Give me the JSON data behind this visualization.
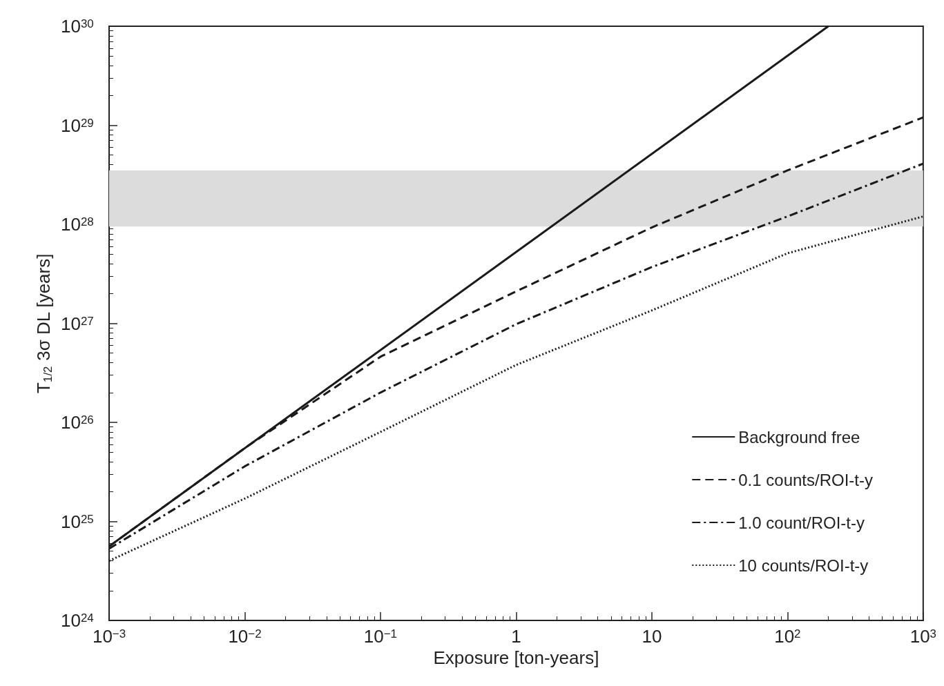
{
  "chart_data": {
    "type": "line",
    "xlabel": "Exposure [ton-years]",
    "ylabel": "T$_{1/2}$ 3σ DL [years]",
    "log": "xy",
    "xlim": [
      0.001,
      1000
    ],
    "ylim": [
      1e+24,
      1e+30
    ],
    "xticks": [
      {
        "value": 0.001,
        "label": "10$^{−3}$"
      },
      {
        "value": 0.01,
        "label": "10$^{−2}$"
      },
      {
        "value": 0.1,
        "label": "10$^{−1}$"
      },
      1,
      10,
      {
        "value": 100,
        "label": "10$^{2}$"
      },
      {
        "value": 1000,
        "label": "10$^{3}$"
      }
    ],
    "yticks": [
      {
        "value": 1e+24,
        "label": "10$^{24}$"
      },
      {
        "value": 1e+25,
        "label": "10$^{25}$"
      },
      {
        "value": 1e+26,
        "label": "10$^{26}$"
      },
      {
        "value": 1e+27,
        "label": "10$^{27}$"
      },
      {
        "value": 1e+28,
        "label": "10$^{28}$"
      },
      {
        "value": 1e+29,
        "label": "10$^{29}$"
      },
      {
        "value": 1e+30,
        "label": "10$^{30}$"
      }
    ],
    "x": [
      0.001,
      0.01,
      0.1,
      1,
      10,
      100,
      1000
    ],
    "series": [
      {
        "name": "Background free",
        "color": "#1a1a1a",
        "line_style": "solid",
        "x": [
          0.001,
          200
        ],
        "values": [
          5.6e+24,
          1e+30
        ]
      },
      {
        "name": "0.1 counts/ROI-t-y",
        "color": "#1a1a1a",
        "line_style": "dashed",
        "values": [
          5.6e+24,
          5.5e+25,
          4.6e+26,
          2.1e+27,
          9.3e+27,
          3.5e+28,
          1.2e+29
        ]
      },
      {
        "name": "1.0 count/ROI-t-y",
        "color": "#1a1a1a",
        "line_style": "dashdot",
        "values": [
          5.3e+24,
          3.6e+25,
          2e+26,
          9.8e+26,
          3.7e+27,
          1.2e+28,
          4.1e+28
        ]
      },
      {
        "name": "10 counts/ROI-t-y",
        "color": "#1a1a1a",
        "line_style": "dotted",
        "values": [
          4e+24,
          1.7e+25,
          8e+25,
          3.8e+26,
          1.35e+27,
          5.1e+27,
          1.2e+28
        ]
      }
    ],
    "bands": [
      {
        "axis": "y",
        "from": 9.5e+27,
        "to": 3.5e+28,
        "color": "#dcdcdc"
      }
    ],
    "legend": "bottom right",
    "grid": false,
    "marker": "none"
  }
}
